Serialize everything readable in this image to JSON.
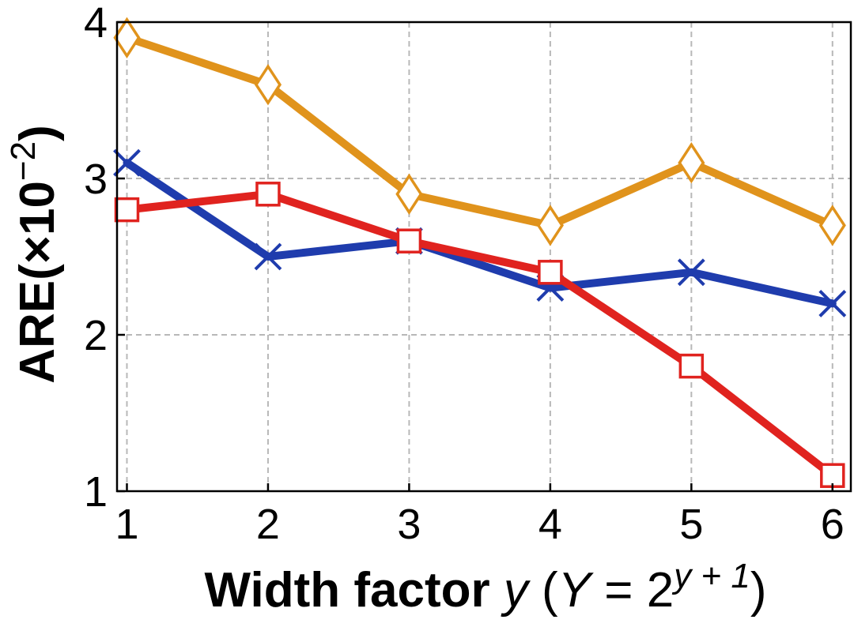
{
  "chart_data": {
    "type": "line",
    "xlabel": "Width factor y (Y = 2^{y + 1})",
    "xlabel_parts": {
      "bold": "Width factor",
      "var": "y",
      "open": " (",
      "cap_var": "Y",
      "eq": " = 2",
      "sup": "y + 1",
      "close": ")"
    },
    "ylabel": "ARE(×10⁻²)",
    "ylabel_parts": {
      "base": "ARE(×10",
      "sup": "−2",
      "close": ")"
    },
    "x": [
      1,
      2,
      3,
      4,
      5,
      6
    ],
    "xlim": [
      0.93,
      6.13
    ],
    "ylim": [
      1,
      4
    ],
    "x_ticks": [
      "1",
      "2",
      "3",
      "4",
      "5",
      "6"
    ],
    "y_ticks": [
      "1",
      "2",
      "3",
      "4"
    ],
    "grid": true,
    "series": [
      {
        "marker": "diamond",
        "color": "#e0931c",
        "values": [
          3.9,
          3.6,
          2.9,
          2.7,
          3.1,
          2.7
        ]
      },
      {
        "marker": "x",
        "color": "#1f3cad",
        "values": [
          3.1,
          2.5,
          2.6,
          2.3,
          2.4,
          2.2
        ]
      },
      {
        "marker": "square",
        "color": "#e0231f",
        "values": [
          2.8,
          2.9,
          2.6,
          2.4,
          1.8,
          1.1
        ]
      }
    ]
  }
}
